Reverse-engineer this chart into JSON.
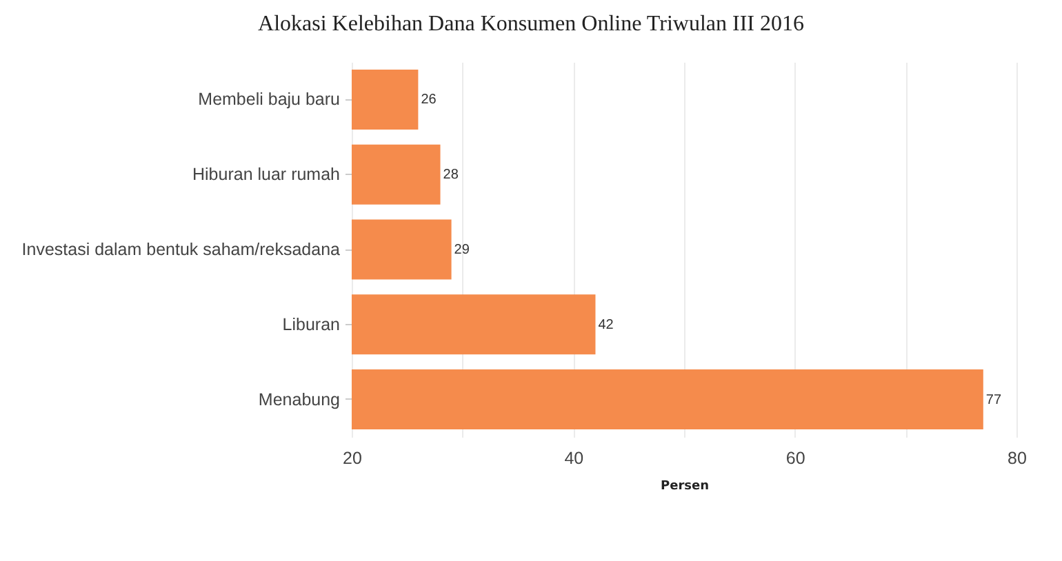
{
  "chart_data": {
    "type": "bar",
    "orientation": "horizontal",
    "title": "Alokasi Kelebihan Dana Konsumen Online Triwulan III 2016",
    "categories": [
      "Membeli baju baru",
      "Hiburan luar rumah",
      "Investasi dalam bentuk saham/reksadana",
      "Liburan",
      "Menabung"
    ],
    "values": [
      26,
      28,
      29,
      42,
      77
    ],
    "color": "#f58b4c",
    "xlabel": "Persen",
    "xlim": [
      20,
      80
    ],
    "xticks": [
      20,
      {
        "value": 30,
        "label": null
      },
      40,
      {
        "value": 50,
        "label": null
      },
      60,
      {
        "value": 70,
        "label": null
      },
      80
    ],
    "grid": "x",
    "data_labels": true
  }
}
